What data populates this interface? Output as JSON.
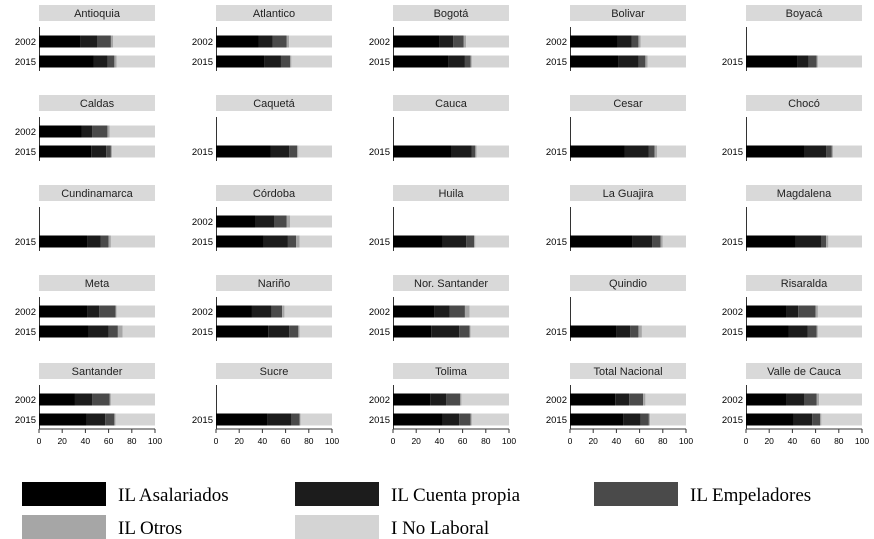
{
  "chart_data": {
    "type": "bar",
    "orientation": "horizontal",
    "stacked": true,
    "xlim": [
      0,
      100
    ],
    "x_ticks": [
      0,
      20,
      40,
      60,
      80,
      100
    ],
    "row_labels": [
      "2002",
      "2015"
    ],
    "legend_position": "bottom",
    "series": [
      {
        "name": "IL Asalariados",
        "color": "#000000"
      },
      {
        "name": "IL Cuenta propia",
        "color": "#1c1c1c"
      },
      {
        "name": "IL Empeladores",
        "color": "#4a4a4a"
      },
      {
        "name": "IL Otros",
        "color": "#a6a6a6"
      },
      {
        "name": "I No Laboral",
        "color": "#d4d4d4"
      }
    ],
    "panels": [
      {
        "title": "Antioquia",
        "data": {
          "2002": [
            36,
            14,
            12,
            2,
            36
          ],
          "2015": [
            47,
            12,
            6,
            2,
            33
          ]
        }
      },
      {
        "title": "Atlantico",
        "data": {
          "2002": [
            37,
            12,
            12,
            2,
            37
          ],
          "2015": [
            42,
            14,
            8,
            1,
            35
          ]
        }
      },
      {
        "title": "Bogotá",
        "data": {
          "2002": [
            40,
            12,
            9,
            2,
            37
          ],
          "2015": [
            48,
            14,
            5,
            1,
            32
          ]
        }
      },
      {
        "title": "Bolivar",
        "data": {
          "2002": [
            41,
            12,
            6,
            2,
            39
          ],
          "2015": [
            42,
            17,
            6,
            2,
            33
          ]
        }
      },
      {
        "title": "Boyacá",
        "data": {
          "2015": [
            44,
            10,
            7,
            1,
            38
          ]
        }
      },
      {
        "title": "Caldas",
        "data": {
          "2002": [
            37,
            9,
            13,
            2,
            39
          ],
          "2015": [
            45,
            13,
            4,
            1,
            37
          ]
        }
      },
      {
        "title": "Caquetá",
        "data": {
          "2015": [
            47,
            16,
            7,
            1,
            29
          ]
        }
      },
      {
        "title": "Cauca",
        "data": {
          "2015": [
            50,
            18,
            3,
            1,
            28
          ]
        }
      },
      {
        "title": "Cesar",
        "data": {
          "2015": [
            47,
            21,
            5,
            2,
            25
          ]
        }
      },
      {
        "title": "Chocó",
        "data": {
          "2015": [
            50,
            19,
            5,
            1,
            25
          ]
        }
      },
      {
        "title": "Cundinamarca",
        "data": {
          "2015": [
            42,
            11,
            7,
            2,
            38
          ]
        }
      },
      {
        "title": "Córdoba",
        "data": {
          "2002": [
            34,
            16,
            11,
            3,
            36
          ],
          "2015": [
            41,
            21,
            7,
            3,
            28
          ]
        }
      },
      {
        "title": "Huila",
        "data": {
          "2015": [
            43,
            20,
            7,
            1,
            29
          ]
        }
      },
      {
        "title": "La Guajira",
        "data": {
          "2015": [
            54,
            17,
            7,
            2,
            20
          ]
        }
      },
      {
        "title": "Magdalena",
        "data": {
          "2015": [
            43,
            22,
            4,
            2,
            29
          ]
        }
      },
      {
        "title": "Meta",
        "data": {
          "2002": [
            42,
            10,
            14,
            1,
            33
          ],
          "2015": [
            43,
            17,
            8,
            4,
            28
          ]
        }
      },
      {
        "title": "Nariño",
        "data": {
          "2002": [
            31,
            17,
            9,
            2,
            41
          ],
          "2015": [
            45,
            18,
            8,
            1,
            28
          ]
        }
      },
      {
        "title": "Nor. Santander",
        "data": {
          "2002": [
            36,
            13,
            13,
            4,
            34
          ],
          "2015": [
            33,
            24,
            9,
            1,
            33
          ]
        }
      },
      {
        "title": "Quindio",
        "data": {
          "2015": [
            40,
            12,
            7,
            3,
            38
          ]
        }
      },
      {
        "title": "Risaralda",
        "data": {
          "2002": [
            35,
            10,
            15,
            2,
            38
          ],
          "2015": [
            37,
            16,
            8,
            1,
            38
          ]
        }
      },
      {
        "title": "Santander",
        "data": {
          "2002": [
            31,
            15,
            15,
            1,
            38
          ],
          "2015": [
            41,
            16,
            8,
            1,
            34
          ]
        }
      },
      {
        "title": "Sucre",
        "data": {
          "2015": [
            44,
            21,
            7,
            1,
            27
          ]
        }
      },
      {
        "title": "Tolima",
        "data": {
          "2002": [
            32,
            14,
            12,
            1,
            41
          ],
          "2015": [
            43,
            14,
            10,
            1,
            32
          ]
        }
      },
      {
        "title": "Total Nacional",
        "data": {
          "2002": [
            39,
            12,
            12,
            2,
            35
          ],
          "2015": [
            46,
            15,
            7,
            1,
            31
          ]
        }
      },
      {
        "title": "Valle de Cauca",
        "data": {
          "2002": [
            35,
            15,
            11,
            2,
            37
          ],
          "2015": [
            41,
            16,
            7,
            1,
            35
          ]
        }
      }
    ]
  }
}
